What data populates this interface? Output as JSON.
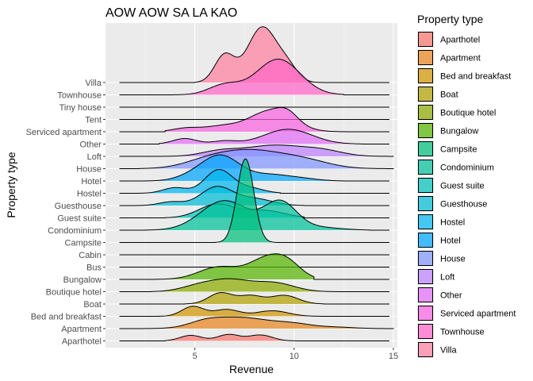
{
  "chart_data": {
    "type": "ridgeline",
    "title": "AOW AOW SA LA KAO",
    "xlabel": "Revenue",
    "ylabel": "Property type",
    "xlim": [
      0.5,
      15.2
    ],
    "x_ticks": [
      5,
      10,
      15
    ],
    "grid": true,
    "legend": {
      "title": "Property type",
      "placement": "right"
    },
    "categories": [
      "Aparthotel",
      "Apartment",
      "Bed and breakfast",
      "Boat",
      "Boutique hotel",
      "Bungalow",
      "Bus",
      "Cabin",
      "Campsite",
      "Condominium",
      "Guest suite",
      "Guesthouse",
      "Hostel",
      "Hotel",
      "House",
      "Loft",
      "Other",
      "Serviced apartment",
      "Tent",
      "Tiny house",
      "Townhouse",
      "Villa"
    ],
    "series": [
      {
        "name": "Aparthotel",
        "color": "#F8766D",
        "range": [
          3.5,
          10.8
        ],
        "peaks": [
          [
            4.8,
            0.45,
            0.55
          ],
          [
            6.7,
            0.52,
            0.55
          ],
          [
            8.3,
            0.48,
            0.6
          ]
        ]
      },
      {
        "name": "Apartment",
        "color": "#E7851E",
        "range": [
          1.8,
          15.0
        ],
        "peaks": [
          [
            5.5,
            0.35,
            0.8
          ],
          [
            7.3,
            0.9,
            1.5
          ],
          [
            10.0,
            0.3,
            0.9
          ],
          [
            12.0,
            0.12,
            1.0
          ]
        ]
      },
      {
        "name": "Bed and breakfast",
        "color": "#D09400",
        "range": [
          3.2,
          12.5
        ],
        "peaks": [
          [
            4.9,
            0.8,
            0.55
          ],
          [
            6.6,
            0.55,
            0.65
          ],
          [
            8.9,
            0.45,
            0.8
          ]
        ]
      },
      {
        "name": "Boat",
        "color": "#B2A100",
        "range": [
          4.5,
          11.5
        ],
        "peaks": [
          [
            6.3,
            0.9,
            0.6
          ],
          [
            7.8,
            0.65,
            0.6
          ],
          [
            9.5,
            0.7,
            0.7
          ]
        ]
      },
      {
        "name": "Boutique hotel",
        "color": "#8BAB00",
        "range": [
          2.8,
          12.5
        ],
        "peaks": [
          [
            5.2,
            0.45,
            0.9
          ],
          [
            6.8,
            0.9,
            1.0
          ],
          [
            9.0,
            0.7,
            1.0
          ]
        ]
      },
      {
        "name": "Bungalow",
        "color": "#55B400",
        "range": [
          3.0,
          11.0
        ],
        "peaks": [
          [
            6.2,
            1.0,
            1.0
          ],
          [
            8.6,
            1.6,
            0.9
          ],
          [
            9.7,
            1.0,
            0.7
          ]
        ]
      },
      {
        "name": "Bus",
        "color": "#00BA38",
        "range": [],
        "peaks": []
      },
      {
        "name": "Cabin",
        "color": "#00BE6C",
        "range": [],
        "peaks": []
      },
      {
        "name": "Campsite",
        "color": "#00BF7D",
        "range": [
          6.0,
          9.2
        ],
        "peaks": [
          [
            7.55,
            6.8,
            0.42
          ]
        ]
      },
      {
        "name": "Condominium",
        "color": "#00C19A",
        "range": [
          2.5,
          13.8
        ],
        "peaks": [
          [
            6.5,
            2.4,
            1.2
          ],
          [
            9.3,
            2.2,
            0.8
          ],
          [
            11.0,
            0.25,
            1.2
          ]
        ]
      },
      {
        "name": "Guest suite",
        "color": "#00C0B8",
        "range": [
          3.5,
          10.5
        ],
        "peaks": [
          [
            6.1,
            1.1,
            0.9
          ],
          [
            8.5,
            0.6,
            1.0
          ]
        ]
      },
      {
        "name": "Guesthouse",
        "color": "#00BCD6",
        "range": [
          2.0,
          10.5
        ],
        "peaks": [
          [
            3.8,
            0.3,
            0.6
          ],
          [
            6.1,
            1.5,
            0.8
          ],
          [
            8.0,
            0.55,
            0.9
          ]
        ]
      },
      {
        "name": "Hostel",
        "color": "#00B5EE",
        "range": [
          2.0,
          9.3
        ],
        "peaks": [
          [
            4.0,
            0.45,
            0.6
          ],
          [
            6.2,
            1.9,
            0.7
          ],
          [
            7.8,
            0.4,
            0.7
          ]
        ]
      },
      {
        "name": "Hotel",
        "color": "#00A5FF",
        "range": [
          2.5,
          12.5
        ],
        "peaks": [
          [
            4.8,
            0.3,
            0.8
          ],
          [
            6.3,
            2.05,
            0.95
          ],
          [
            8.8,
            0.5,
            1.0
          ],
          [
            10.5,
            0.15,
            0.8
          ]
        ]
      },
      {
        "name": "House",
        "color": "#7F96FF",
        "range": [
          2.2,
          15.0
        ],
        "peaks": [
          [
            5.6,
            0.5,
            1.2
          ],
          [
            7.8,
            1.4,
            1.6
          ],
          [
            10.5,
            0.6,
            1.3
          ]
        ]
      },
      {
        "name": "Loft",
        "color": "#BC81FF",
        "range": [
          2.8,
          15.0
        ],
        "peaks": [
          [
            6.2,
            0.35,
            0.9
          ],
          [
            9.0,
            0.9,
            1.6
          ],
          [
            11.5,
            0.35,
            1.0
          ]
        ]
      },
      {
        "name": "Other",
        "color": "#E26EF7",
        "range": [
          3.2,
          13.5
        ],
        "peaks": [
          [
            4.5,
            0.45,
            0.6
          ],
          [
            6.5,
            0.25,
            0.6
          ],
          [
            9.7,
            1.2,
            1.2
          ]
        ]
      },
      {
        "name": "Serviced apartment",
        "color": "#F863DF",
        "range": [
          3.5,
          13.5
        ],
        "peaks": [
          [
            4.6,
            0.3,
            0.7
          ],
          [
            6.3,
            0.4,
            0.8
          ],
          [
            8.8,
            1.7,
            1.1
          ],
          [
            9.7,
            0.6,
            0.5
          ]
        ]
      },
      {
        "name": "Tent",
        "color": "#FF62BF",
        "range": [],
        "peaks": []
      },
      {
        "name": "Tiny house",
        "color": "#FF6A9A",
        "range": [],
        "peaks": []
      },
      {
        "name": "Townhouse",
        "color": "#FF65C8",
        "range": [
          3.5,
          12.5
        ],
        "peaks": [
          [
            6.5,
            0.8,
            0.8
          ],
          [
            9.2,
            2.9,
            1.1
          ]
        ]
      },
      {
        "name": "Villa",
        "color": "#FF7F9F",
        "range": [
          5.0,
          11.8
        ],
        "peaks": [
          [
            6.5,
            2.2,
            0.5
          ],
          [
            8.4,
            4.5,
            0.75
          ],
          [
            9.7,
            1.0,
            0.5
          ]
        ]
      }
    ]
  }
}
